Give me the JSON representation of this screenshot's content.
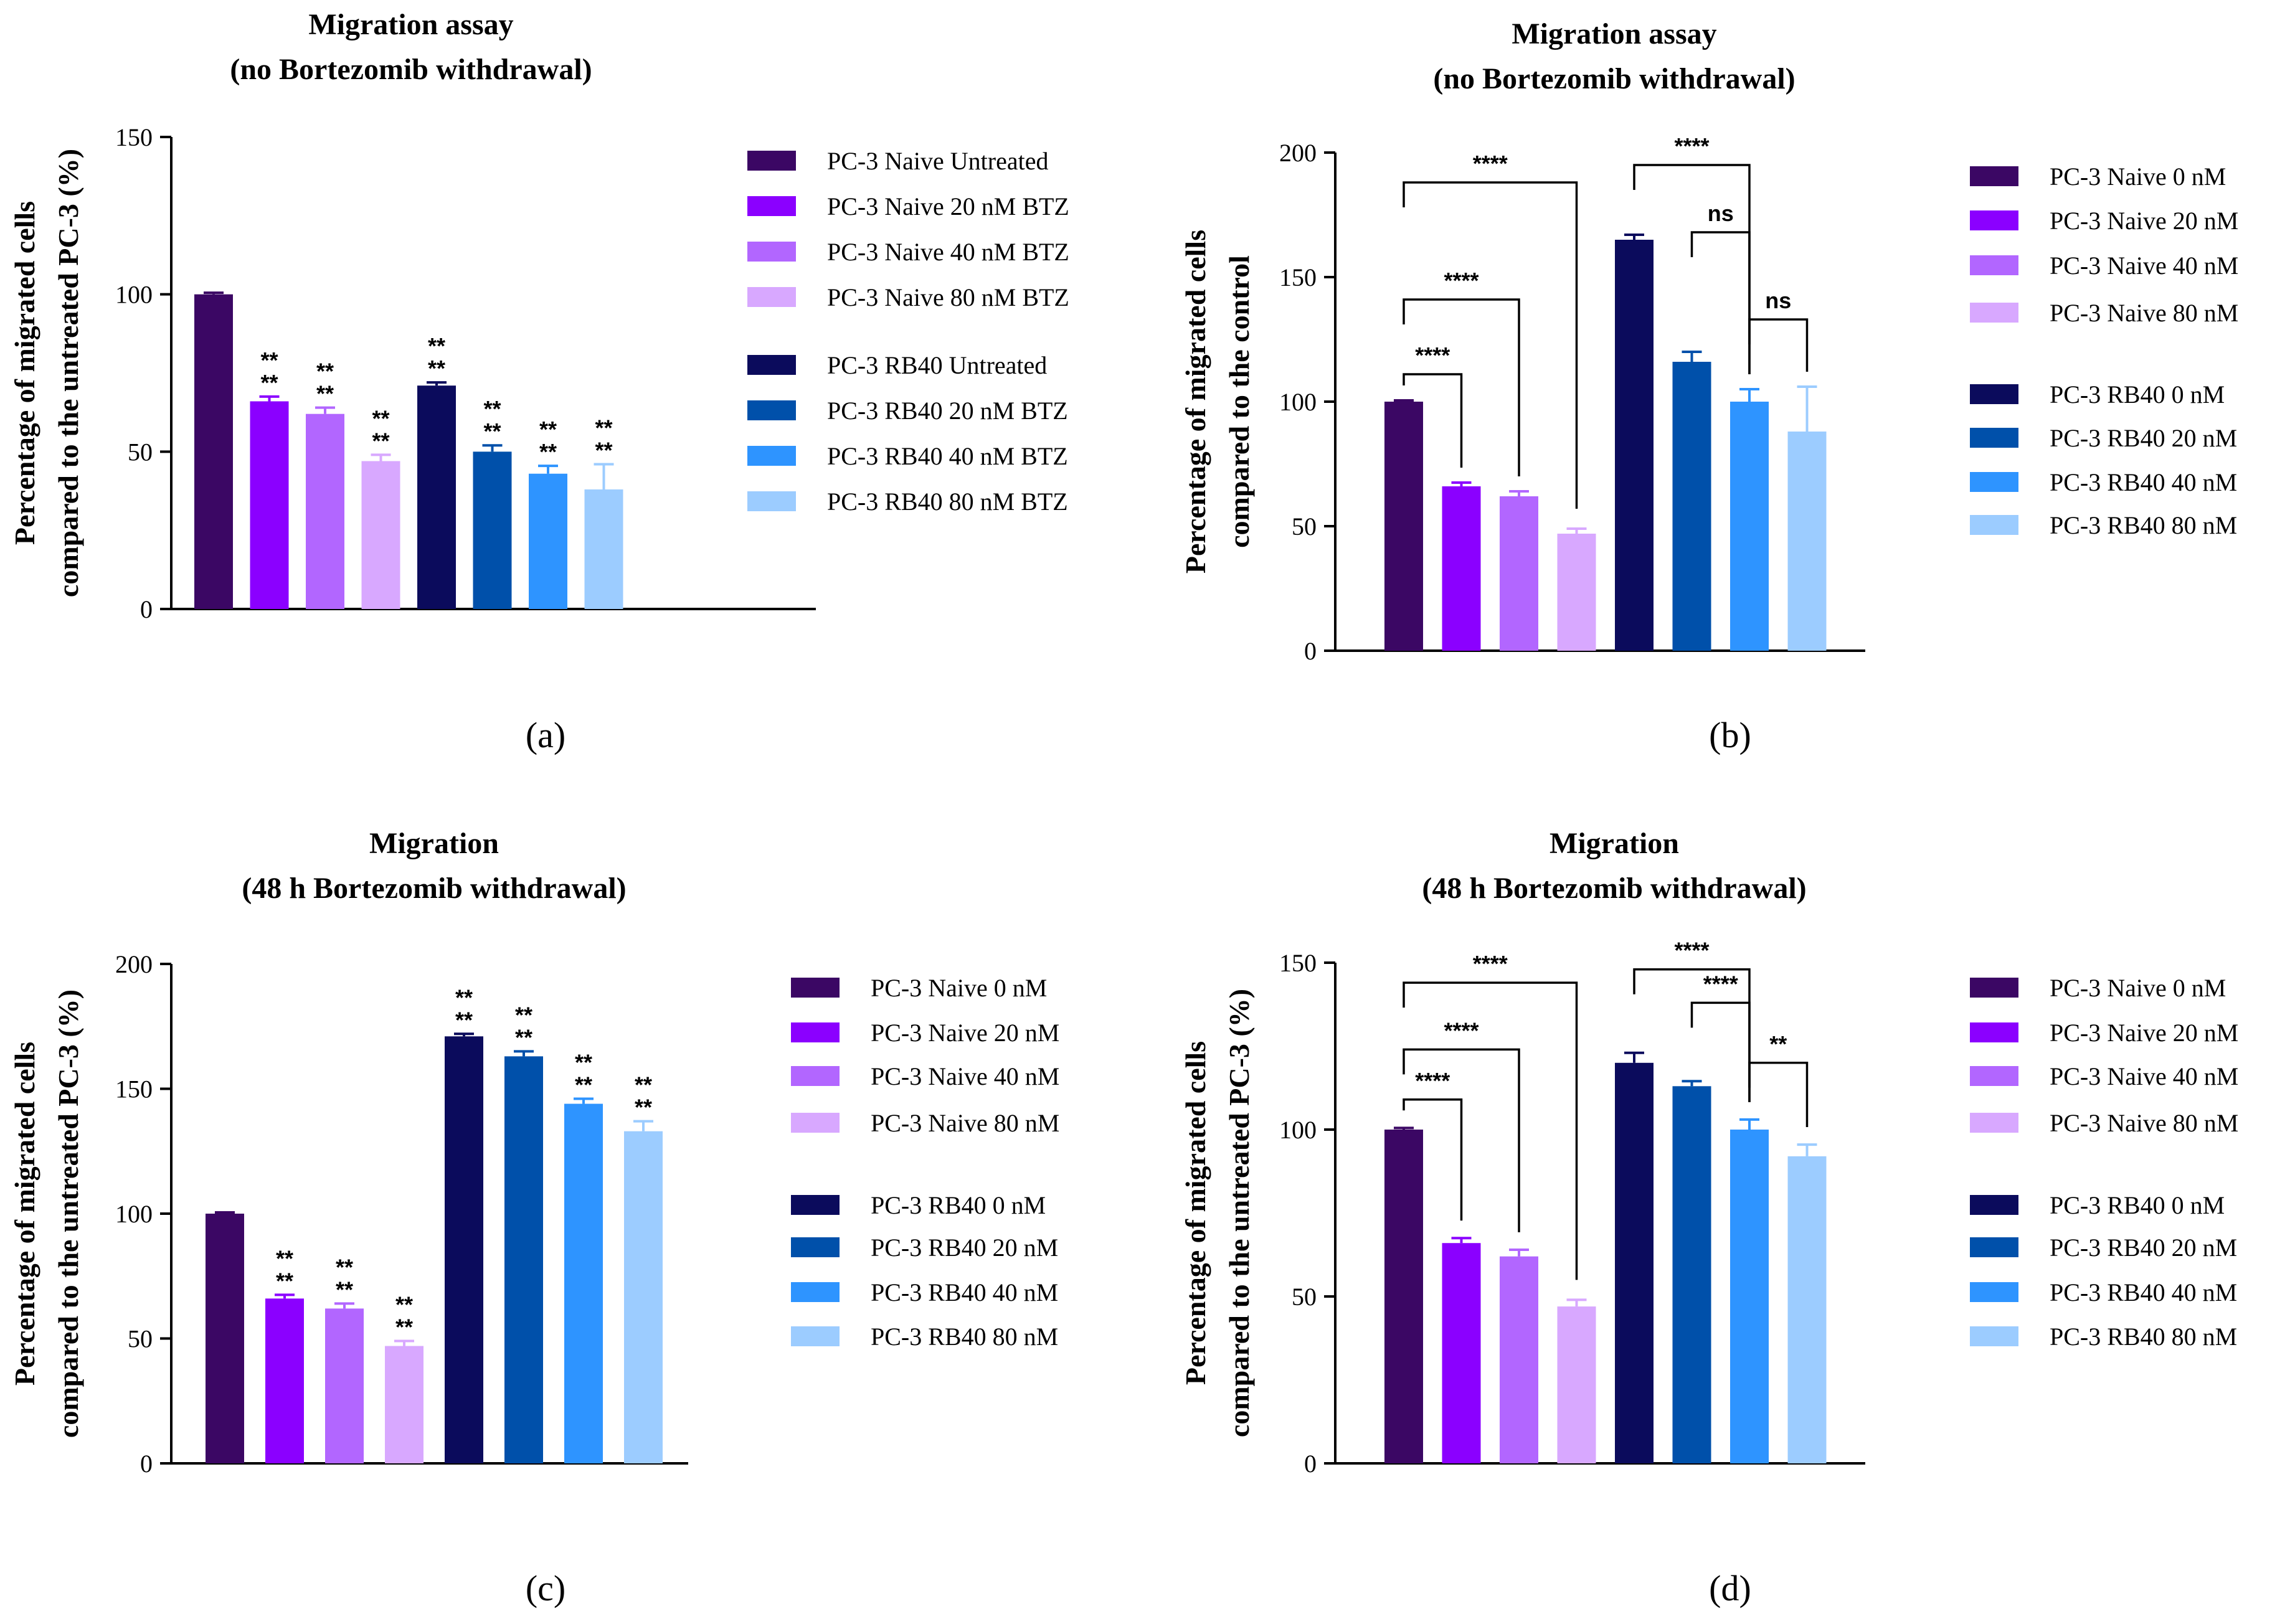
{
  "colors": [
    "#3b0764",
    "#8b00ff",
    "#b266ff",
    "#d8a8ff",
    "#0b0b5c",
    "#0050aa",
    "#2e94ff",
    "#9cccff"
  ],
  "chart_data": [
    {
      "type": "bar",
      "panel": "(a)",
      "title": [
        "Migration assay",
        "(no Bortezomib withdrawal)"
      ],
      "ylabel": [
        "Percentage of migrated cells",
        "compared to the untreated PC-3 (%)"
      ],
      "ylim": [
        0,
        150
      ],
      "yticks": [
        0,
        50,
        100,
        150
      ],
      "categories": [
        "PC-3 Naive Untreated",
        "PC-3 Naive 20 nM BTZ",
        "PC-3 Naive 40 nM BTZ",
        "PC-3 Naive 80 nM BTZ",
        "PC-3 RB40 Untreated",
        "PC-3 RB40 20 nM BTZ",
        "PC-3 RB40 40 nM BTZ",
        "PC-3 RB40 80 nM BTZ"
      ],
      "values": [
        100,
        66,
        62,
        47,
        71,
        50,
        43,
        38
      ],
      "errors": [
        0.5,
        1.5,
        2,
        2,
        1,
        2,
        2.5,
        8
      ],
      "stars": [
        "",
        "**\n**",
        "**\n**",
        "**\n**",
        "**\n**",
        "**\n**",
        "**\n**",
        "**\n**"
      ],
      "brackets": []
    },
    {
      "type": "bar",
      "panel": "(b)",
      "title": [
        "Migration assay",
        "(no Bortezomib withdrawal)"
      ],
      "ylabel": [
        "Percentage of migrated cells",
        "compared to the control"
      ],
      "ylim": [
        0,
        200
      ],
      "yticks": [
        0,
        50,
        100,
        150,
        200
      ],
      "categories": [
        "PC-3 Naive 0 nM",
        "PC-3 Naive 20 nM",
        "PC-3 Naive 40 nM",
        "PC-3 Naive 80 nM",
        "PC-3 RB40 0 nM",
        "PC-3 RB40 20 nM",
        "PC-3 RB40 40 nM",
        "PC-3 RB40 80 nM"
      ],
      "values": [
        100,
        66,
        62,
        47,
        165,
        116,
        100,
        88
      ],
      "errors": [
        0.5,
        1.5,
        2,
        2,
        2,
        4,
        5,
        18
      ],
      "stars": [
        "",
        "",
        "",
        "",
        "",
        "",
        "",
        ""
      ],
      "brackets": [
        {
          "from": 0,
          "to": 3,
          "level": 188,
          "label": "****"
        },
        {
          "from": 0,
          "to": 2,
          "level": 141,
          "label": "****"
        },
        {
          "from": 0,
          "to": 1,
          "level": 111,
          "label": "****"
        },
        {
          "from": 4,
          "to": 6,
          "level": 195,
          "label": "****"
        },
        {
          "from": 5,
          "to": 6,
          "level": 168,
          "label": "ns"
        },
        {
          "from": 6,
          "to": 7,
          "level": 133,
          "label": "ns"
        }
      ]
    },
    {
      "type": "bar",
      "panel": "(c)",
      "title": [
        "Migration",
        "(48 h Bortezomib withdrawal)"
      ],
      "ylabel": [
        "Percentage of migrated cells",
        "compared to the untreated PC-3 (%)"
      ],
      "ylim": [
        0,
        200
      ],
      "yticks": [
        0,
        50,
        100,
        150,
        200
      ],
      "categories": [
        "PC-3 Naive 0 nM",
        "PC-3 Naive 20 nM",
        "PC-3 Naive 40 nM",
        "PC-3 Naive 80 nM",
        "PC-3 RB40 0 nM",
        "PC-3 RB40 20 nM",
        "PC-3 RB40 40 nM",
        "PC-3 RB40 80 nM"
      ],
      "values": [
        100,
        66,
        62,
        47,
        171,
        163,
        144,
        133
      ],
      "errors": [
        0.5,
        1.5,
        2,
        2,
        1,
        2,
        2,
        4
      ],
      "stars": [
        "",
        "**\n**",
        "**\n**",
        "**\n**",
        "**\n**",
        "**\n**",
        "**\n**",
        "**\n**"
      ],
      "brackets": []
    },
    {
      "type": "bar",
      "panel": "(d)",
      "title": [
        "Migration",
        "(48 h Bortezomib withdrawal)"
      ],
      "ylabel": [
        "Percentage of migrated cells",
        "compared to the untreated PC-3 (%)"
      ],
      "ylim": [
        0,
        150
      ],
      "yticks": [
        0,
        50,
        100,
        150
      ],
      "categories": [
        "PC-3 Naive 0 nM",
        "PC-3 Naive 20 nM",
        "PC-3 Naive 40 nM",
        "PC-3 Naive 80 nM",
        "PC-3 RB40 0 nM",
        "PC-3 RB40 20 nM",
        "PC-3 RB40 40 nM",
        "PC-3 RB40 80 nM"
      ],
      "values": [
        100,
        66,
        62,
        47,
        120,
        113,
        100,
        92
      ],
      "errors": [
        0.5,
        1.5,
        2,
        2,
        3,
        1.5,
        3,
        3.5
      ],
      "stars": [
        "",
        "",
        "",
        "",
        "",
        "",
        "",
        ""
      ],
      "brackets": [
        {
          "from": 0,
          "to": 3,
          "level": 144,
          "label": "****"
        },
        {
          "from": 0,
          "to": 2,
          "level": 124,
          "label": "****"
        },
        {
          "from": 0,
          "to": 1,
          "level": 109,
          "label": "****"
        },
        {
          "from": 4,
          "to": 6,
          "level": 148,
          "label": "****"
        },
        {
          "from": 5,
          "to": 6,
          "level": 138,
          "label": "****"
        },
        {
          "from": 6,
          "to": 7,
          "level": 120,
          "label": "**"
        }
      ]
    }
  ]
}
